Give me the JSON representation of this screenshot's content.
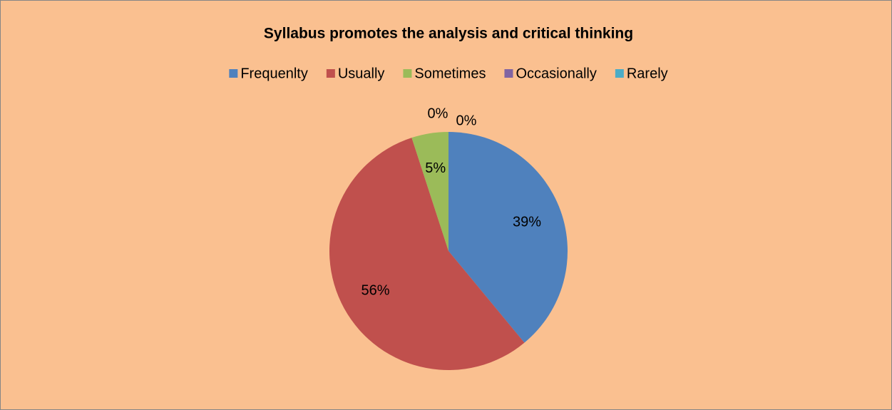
{
  "chart_data": {
    "type": "pie",
    "title": "Syllabus promotes the analysis and critical thinking",
    "categories": [
      "Frequenlty",
      "Usually",
      "Sometimes",
      "Occasionally",
      "Rarely"
    ],
    "values": [
      39,
      56,
      5,
      0,
      0
    ],
    "value_labels": [
      "39%",
      "56%",
      "5%",
      "0%",
      "0%"
    ],
    "colors": [
      "#4f81bd",
      "#c0504d",
      "#9bbb59",
      "#8064a2",
      "#4bacc6"
    ],
    "legend": "top"
  }
}
